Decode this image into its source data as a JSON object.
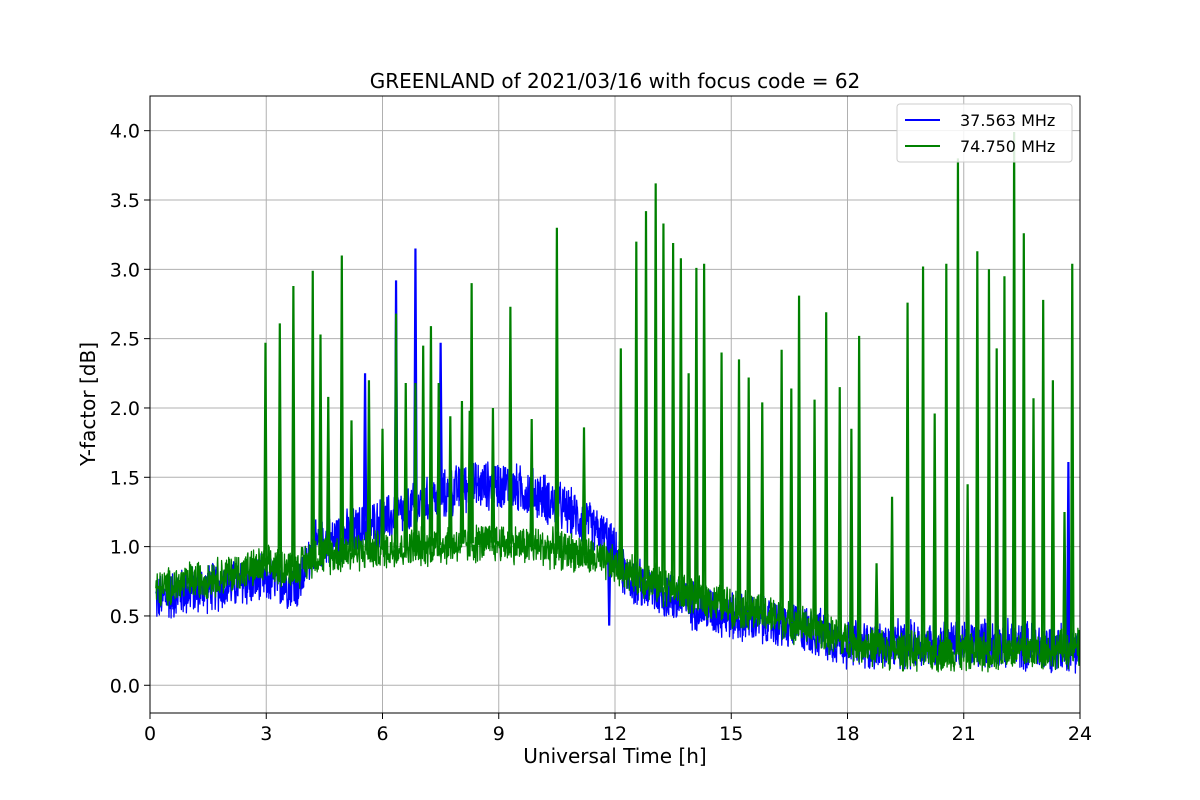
{
  "chart_data": {
    "type": "line",
    "title": "GREENLAND of 2021/03/16 with focus code = 62",
    "xlabel": "Universal Time [h]",
    "ylabel": "Y-factor [dB]",
    "xlim": [
      0,
      24
    ],
    "ylim": [
      -0.2,
      4.25
    ],
    "xticks": [
      0,
      3,
      6,
      9,
      12,
      15,
      18,
      21,
      24
    ],
    "xtick_labels": [
      "0",
      "3",
      "6",
      "9",
      "12",
      "15",
      "18",
      "21",
      "24"
    ],
    "yticks": [
      0.0,
      0.5,
      1.0,
      1.5,
      2.0,
      2.5,
      3.0,
      3.5,
      4.0
    ],
    "ytick_labels": [
      "0.0",
      "0.5",
      "1.0",
      "1.5",
      "2.0",
      "2.5",
      "3.0",
      "3.5",
      "4.0"
    ],
    "grid": true,
    "legend_position": "top-right",
    "data_range": [
      0.15,
      24
    ],
    "series": [
      {
        "name": "37.563 MHz",
        "color": "#0000ff",
        "noise": 0.2,
        "baseline": [
          [
            0.15,
            0.62
          ],
          [
            1,
            0.68
          ],
          [
            2,
            0.72
          ],
          [
            3,
            0.76
          ],
          [
            3.85,
            0.72
          ],
          [
            4.2,
            1.0
          ],
          [
            5,
            1.08
          ],
          [
            6,
            1.18
          ],
          [
            7,
            1.3
          ],
          [
            8,
            1.42
          ],
          [
            9,
            1.45
          ],
          [
            10,
            1.38
          ],
          [
            11,
            1.22
          ],
          [
            11.8,
            1.05
          ],
          [
            12.3,
            0.78
          ],
          [
            13,
            0.68
          ],
          [
            14,
            0.58
          ],
          [
            15,
            0.5
          ],
          [
            16,
            0.45
          ],
          [
            17,
            0.4
          ],
          [
            18,
            0.3
          ],
          [
            19,
            0.28
          ],
          [
            20,
            0.3
          ],
          [
            21,
            0.3
          ],
          [
            22,
            0.3
          ],
          [
            23,
            0.28
          ],
          [
            24,
            0.28
          ]
        ],
        "spikes": [
          [
            5.55,
            2.25
          ],
          [
            6.35,
            2.92
          ],
          [
            6.85,
            3.15
          ],
          [
            7.5,
            2.47
          ],
          [
            11.85,
            0.43
          ],
          [
            23.7,
            1.61
          ]
        ]
      },
      {
        "name": "74.750 MHz",
        "color": "#008000",
        "noise": 0.16,
        "baseline": [
          [
            0.15,
            0.68
          ],
          [
            1,
            0.75
          ],
          [
            2,
            0.8
          ],
          [
            3,
            0.86
          ],
          [
            3.85,
            0.85
          ],
          [
            4.2,
            0.93
          ],
          [
            5,
            0.96
          ],
          [
            6,
            0.98
          ],
          [
            7,
            1.0
          ],
          [
            8,
            1.02
          ],
          [
            9,
            1.03
          ],
          [
            10,
            1.0
          ],
          [
            11,
            0.96
          ],
          [
            12,
            0.86
          ],
          [
            13,
            0.74
          ],
          [
            14,
            0.65
          ],
          [
            15,
            0.57
          ],
          [
            16,
            0.5
          ],
          [
            17,
            0.42
          ],
          [
            18,
            0.32
          ],
          [
            19,
            0.26
          ],
          [
            20,
            0.24
          ],
          [
            21,
            0.24
          ],
          [
            22,
            0.25
          ],
          [
            23,
            0.25
          ],
          [
            24,
            0.27
          ]
        ],
        "spikes": [
          [
            2.98,
            2.47
          ],
          [
            3.35,
            2.61
          ],
          [
            3.7,
            2.88
          ],
          [
            4.2,
            2.99
          ],
          [
            4.4,
            2.53
          ],
          [
            4.6,
            2.08
          ],
          [
            4.95,
            3.1
          ],
          [
            5.2,
            1.91
          ],
          [
            5.65,
            2.2
          ],
          [
            6.0,
            1.85
          ],
          [
            6.35,
            2.68
          ],
          [
            6.6,
            2.18
          ],
          [
            6.85,
            2.18
          ],
          [
            7.05,
            2.45
          ],
          [
            7.25,
            2.59
          ],
          [
            7.45,
            2.18
          ],
          [
            7.75,
            1.94
          ],
          [
            8.05,
            2.05
          ],
          [
            8.25,
            1.98
          ],
          [
            8.3,
            2.9
          ],
          [
            8.85,
            2.0
          ],
          [
            9.3,
            2.73
          ],
          [
            9.85,
            1.92
          ],
          [
            10.5,
            3.3
          ],
          [
            11.2,
            1.86
          ],
          [
            12.15,
            2.43
          ],
          [
            12.55,
            3.2
          ],
          [
            12.8,
            3.42
          ],
          [
            13.05,
            3.62
          ],
          [
            13.25,
            3.33
          ],
          [
            13.5,
            3.19
          ],
          [
            13.7,
            3.08
          ],
          [
            13.9,
            2.25
          ],
          [
            14.1,
            3.01
          ],
          [
            14.3,
            3.04
          ],
          [
            14.75,
            2.4
          ],
          [
            15.2,
            2.35
          ],
          [
            15.45,
            2.22
          ],
          [
            15.8,
            2.04
          ],
          [
            16.3,
            2.42
          ],
          [
            16.55,
            2.14
          ],
          [
            16.75,
            2.81
          ],
          [
            17.15,
            2.06
          ],
          [
            17.45,
            2.69
          ],
          [
            17.8,
            2.15
          ],
          [
            18.1,
            1.85
          ],
          [
            18.3,
            2.52
          ],
          [
            18.75,
            0.88
          ],
          [
            19.15,
            1.36
          ],
          [
            19.55,
            2.76
          ],
          [
            19.95,
            3.02
          ],
          [
            20.25,
            1.96
          ],
          [
            20.55,
            3.04
          ],
          [
            20.85,
            3.8
          ],
          [
            21.1,
            1.45
          ],
          [
            21.35,
            3.13
          ],
          [
            21.65,
            3.0
          ],
          [
            21.85,
            2.43
          ],
          [
            22.05,
            2.95
          ],
          [
            22.3,
            3.99
          ],
          [
            22.55,
            3.26
          ],
          [
            22.8,
            2.07
          ],
          [
            23.05,
            2.78
          ],
          [
            23.3,
            2.2
          ],
          [
            23.6,
            1.25
          ],
          [
            23.8,
            3.04
          ]
        ]
      }
    ]
  }
}
